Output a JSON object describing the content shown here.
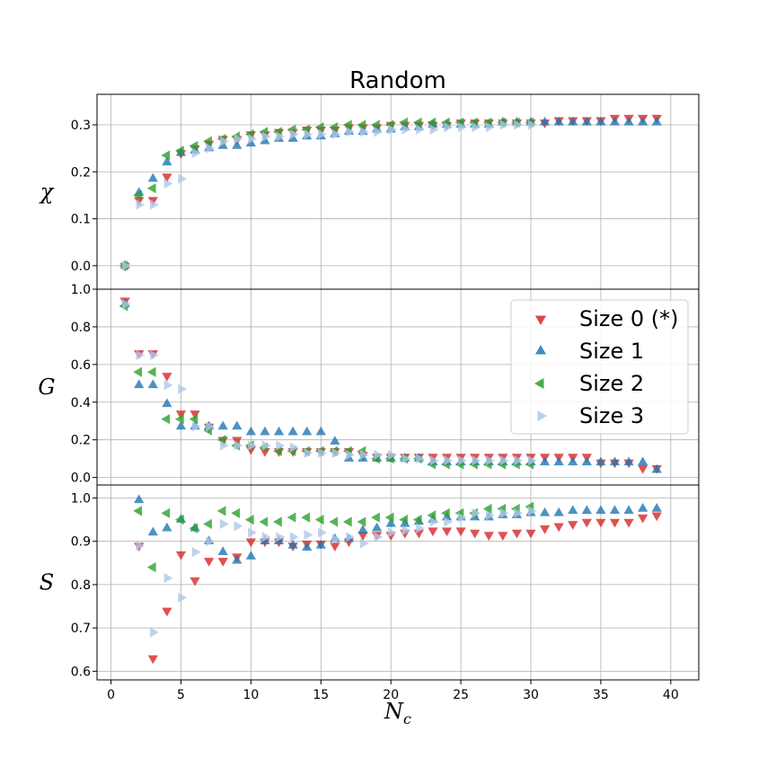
{
  "chart_data": {
    "type": "scatter",
    "title": "Random",
    "xlabel": "N_c",
    "xlabel_main": "N",
    "xlabel_sub": "c",
    "xlim": [
      -1,
      42
    ],
    "xticks": [
      0,
      5,
      10,
      15,
      20,
      25,
      30,
      35,
      40
    ],
    "legend": {
      "placement": "middle panel, upper right",
      "entries": [
        "Size 0 (*)",
        "Size 1",
        "Size 2",
        "Size 3"
      ]
    },
    "series_styles": [
      {
        "name": "Size 0 (*)",
        "marker": "triangle-down",
        "color": "#d62728"
      },
      {
        "name": "Size 1",
        "marker": "triangle-up",
        "color": "#1f77b4"
      },
      {
        "name": "Size 2",
        "marker": "triangle-left",
        "color": "#2ca02c"
      },
      {
        "name": "Size 3",
        "marker": "triangle-right",
        "color": "#aec7e8"
      }
    ],
    "panels": [
      {
        "ylabel": "χ",
        "ylim": [
          -0.05,
          0.365
        ],
        "yticks": [
          0.0,
          0.1,
          0.2,
          0.3
        ],
        "ytick_labels": [
          "0.0",
          "0.1",
          "0.2",
          "0.3"
        ],
        "series": [
          {
            "name": "Size 0 (*)",
            "x": [
              1,
              2,
              3,
              4,
              5,
              6,
              7,
              8,
              9,
              10,
              11,
              12,
              13,
              14,
              15,
              16,
              17,
              18,
              19,
              20,
              21,
              22,
              23,
              24,
              25,
              26,
              27,
              28,
              29,
              30,
              31,
              32,
              33,
              34,
              35,
              36,
              37,
              38,
              39
            ],
            "y": [
              0.0,
              0.14,
              0.14,
              0.19,
              0.24,
              0.25,
              0.26,
              0.27,
              0.27,
              0.28,
              0.28,
              0.285,
              0.285,
              0.29,
              0.29,
              0.29,
              0.295,
              0.295,
              0.295,
              0.3,
              0.3,
              0.3,
              0.3,
              0.3,
              0.305,
              0.305,
              0.305,
              0.305,
              0.305,
              0.305,
              0.305,
              0.31,
              0.31,
              0.31,
              0.31,
              0.315,
              0.315,
              0.315,
              0.315
            ]
          },
          {
            "name": "Size 1",
            "x": [
              1,
              2,
              3,
              4,
              5,
              6,
              7,
              8,
              9,
              10,
              11,
              12,
              13,
              14,
              15,
              16,
              17,
              18,
              19,
              20,
              21,
              22,
              23,
              24,
              25,
              26,
              27,
              28,
              29,
              30,
              31,
              32,
              33,
              34,
              35,
              36,
              37,
              38,
              39
            ],
            "y": [
              0.0,
              0.155,
              0.185,
              0.22,
              0.24,
              0.245,
              0.25,
              0.255,
              0.255,
              0.26,
              0.265,
              0.27,
              0.27,
              0.275,
              0.275,
              0.28,
              0.285,
              0.285,
              0.29,
              0.29,
              0.295,
              0.295,
              0.3,
              0.3,
              0.3,
              0.3,
              0.3,
              0.305,
              0.305,
              0.305,
              0.305,
              0.305,
              0.305,
              0.305,
              0.305,
              0.305,
              0.305,
              0.305,
              0.305
            ]
          },
          {
            "name": "Size 2",
            "x": [
              1,
              2,
              3,
              4,
              5,
              6,
              7,
              8,
              9,
              10,
              11,
              12,
              13,
              14,
              15,
              16,
              17,
              18,
              19,
              20,
              21,
              22,
              23,
              24,
              25,
              26,
              27,
              28,
              29,
              30
            ],
            "y": [
              0.0,
              0.15,
              0.165,
              0.235,
              0.245,
              0.255,
              0.265,
              0.27,
              0.275,
              0.28,
              0.285,
              0.285,
              0.29,
              0.29,
              0.295,
              0.295,
              0.3,
              0.3,
              0.3,
              0.3,
              0.305,
              0.305,
              0.305,
              0.305,
              0.305,
              0.305,
              0.305,
              0.305,
              0.305,
              0.305
            ]
          },
          {
            "name": "Size 3",
            "x": [
              1,
              2,
              3,
              4,
              5,
              6,
              7,
              8,
              9,
              10,
              11,
              12,
              13,
              14,
              15,
              16,
              17,
              18,
              19,
              20,
              21,
              22,
              23,
              24,
              25,
              26,
              27,
              28,
              29,
              30
            ],
            "y": [
              0.0,
              0.13,
              0.13,
              0.175,
              0.185,
              0.24,
              0.25,
              0.265,
              0.27,
              0.27,
              0.275,
              0.275,
              0.28,
              0.28,
              0.28,
              0.28,
              0.285,
              0.285,
              0.285,
              0.29,
              0.29,
              0.29,
              0.29,
              0.295,
              0.295,
              0.295,
              0.295,
              0.3,
              0.3,
              0.3
            ]
          }
        ]
      },
      {
        "ylabel": "G",
        "ylim": [
          -0.04,
          1.0
        ],
        "yticks": [
          0.0,
          0.2,
          0.4,
          0.6,
          0.8,
          1.0
        ],
        "ytick_labels": [
          "0.0",
          "0.2",
          "0.4",
          "0.6",
          "0.8",
          "1.0"
        ],
        "series": [
          {
            "name": "Size 0 (*)",
            "x": [
              1,
              2,
              3,
              4,
              5,
              6,
              7,
              8,
              9,
              10,
              11,
              12,
              13,
              14,
              15,
              16,
              17,
              18,
              19,
              20,
              21,
              22,
              23,
              24,
              25,
              26,
              27,
              28,
              29,
              30,
              31,
              32,
              33,
              34,
              35,
              36,
              37,
              38,
              39
            ],
            "y": [
              0.94,
              0.66,
              0.66,
              0.54,
              0.34,
              0.34,
              0.27,
              0.2,
              0.2,
              0.15,
              0.14,
              0.14,
              0.14,
              0.14,
              0.14,
              0.14,
              0.14,
              0.12,
              0.11,
              0.11,
              0.11,
              0.11,
              0.11,
              0.11,
              0.11,
              0.11,
              0.11,
              0.11,
              0.11,
              0.11,
              0.11,
              0.11,
              0.11,
              0.11,
              0.08,
              0.08,
              0.08,
              0.05,
              0.05
            ]
          },
          {
            "name": "Size 1",
            "x": [
              1,
              2,
              3,
              4,
              5,
              6,
              7,
              8,
              9,
              10,
              11,
              12,
              13,
              14,
              15,
              16,
              17,
              18,
              19,
              20,
              21,
              22,
              23,
              24,
              25,
              26,
              27,
              28,
              29,
              30,
              31,
              32,
              33,
              34,
              35,
              36,
              37,
              38,
              39
            ],
            "y": [
              0.92,
              0.49,
              0.49,
              0.39,
              0.27,
              0.27,
              0.27,
              0.27,
              0.27,
              0.24,
              0.24,
              0.24,
              0.24,
              0.24,
              0.24,
              0.19,
              0.1,
              0.1,
              0.1,
              0.1,
              0.1,
              0.1,
              0.08,
              0.08,
              0.08,
              0.08,
              0.08,
              0.08,
              0.08,
              0.08,
              0.08,
              0.08,
              0.08,
              0.08,
              0.08,
              0.08,
              0.08,
              0.08,
              0.04
            ]
          },
          {
            "name": "Size 2",
            "x": [
              1,
              2,
              3,
              4,
              5,
              6,
              7,
              8,
              9,
              10,
              11,
              12,
              13,
              14,
              15,
              16,
              17,
              18,
              19,
              20,
              21,
              22,
              23,
              24,
              25,
              26,
              27,
              28,
              29,
              30
            ],
            "y": [
              0.91,
              0.56,
              0.56,
              0.31,
              0.31,
              0.31,
              0.25,
              0.2,
              0.17,
              0.17,
              0.16,
              0.14,
              0.14,
              0.14,
              0.14,
              0.14,
              0.14,
              0.14,
              0.1,
              0.1,
              0.1,
              0.1,
              0.07,
              0.07,
              0.07,
              0.07,
              0.07,
              0.07,
              0.07,
              0.07
            ]
          },
          {
            "name": "Size 3",
            "x": [
              1,
              2,
              3,
              4,
              5,
              6,
              7,
              8,
              9,
              10,
              11,
              12,
              13,
              14,
              15,
              16,
              17,
              18,
              19,
              20,
              21,
              22,
              23,
              24,
              25,
              26,
              27,
              28,
              29,
              30
            ],
            "y": [
              0.92,
              0.65,
              0.65,
              0.49,
              0.47,
              0.27,
              0.27,
              0.17,
              0.17,
              0.17,
              0.17,
              0.17,
              0.16,
              0.13,
              0.13,
              0.13,
              0.12,
              0.12,
              0.12,
              0.12,
              0.1,
              0.1,
              0.09,
              0.09,
              0.09,
              0.09,
              0.09,
              0.09,
              0.09,
              0.09
            ]
          }
        ]
      },
      {
        "ylabel": "S",
        "ylim": [
          0.58,
          1.03
        ],
        "yticks": [
          0.6,
          0.7,
          0.8,
          0.9,
          1.0
        ],
        "ytick_labels": [
          "0.6",
          "0.7",
          "0.8",
          "0.9",
          "1.0"
        ],
        "series": [
          {
            "name": "Size 0 (*)",
            "x": [
              2,
              3,
              4,
              5,
              6,
              7,
              8,
              9,
              10,
              11,
              12,
              13,
              14,
              15,
              16,
              17,
              18,
              19,
              20,
              21,
              22,
              23,
              24,
              25,
              26,
              27,
              28,
              29,
              30,
              31,
              32,
              33,
              34,
              35,
              36,
              37,
              38,
              39
            ],
            "y": [
              0.89,
              0.63,
              0.74,
              0.87,
              0.81,
              0.855,
              0.855,
              0.865,
              0.9,
              0.9,
              0.9,
              0.89,
              0.895,
              0.895,
              0.89,
              0.9,
              0.915,
              0.915,
              0.915,
              0.92,
              0.92,
              0.925,
              0.925,
              0.925,
              0.92,
              0.915,
              0.915,
              0.92,
              0.92,
              0.93,
              0.935,
              0.94,
              0.945,
              0.945,
              0.945,
              0.945,
              0.955,
              0.96
            ]
          },
          {
            "name": "Size 1",
            "x": [
              2,
              3,
              4,
              5,
              6,
              7,
              8,
              9,
              10,
              11,
              12,
              13,
              14,
              15,
              16,
              17,
              18,
              19,
              20,
              21,
              22,
              23,
              24,
              25,
              26,
              27,
              28,
              29,
              30,
              31,
              32,
              33,
              34,
              35,
              36,
              37,
              38,
              39
            ],
            "y": [
              0.995,
              0.92,
              0.93,
              0.95,
              0.93,
              0.9,
              0.875,
              0.855,
              0.865,
              0.9,
              0.9,
              0.89,
              0.885,
              0.89,
              0.905,
              0.905,
              0.925,
              0.93,
              0.94,
              0.94,
              0.945,
              0.95,
              0.955,
              0.955,
              0.955,
              0.955,
              0.96,
              0.96,
              0.965,
              0.965,
              0.965,
              0.97,
              0.97,
              0.97,
              0.97,
              0.97,
              0.975,
              0.975
            ]
          },
          {
            "name": "Size 2",
            "x": [
              2,
              3,
              4,
              5,
              6,
              7,
              8,
              9,
              10,
              11,
              12,
              13,
              14,
              15,
              16,
              17,
              18,
              19,
              20,
              21,
              22,
              23,
              24,
              25,
              26,
              27,
              28,
              29,
              30
            ],
            "y": [
              0.97,
              0.84,
              0.965,
              0.95,
              0.93,
              0.94,
              0.97,
              0.965,
              0.95,
              0.945,
              0.945,
              0.955,
              0.955,
              0.95,
              0.945,
              0.945,
              0.945,
              0.955,
              0.955,
              0.95,
              0.95,
              0.96,
              0.965,
              0.965,
              0.965,
              0.975,
              0.975,
              0.975,
              0.98
            ]
          },
          {
            "name": "Size 3",
            "x": [
              2,
              3,
              4,
              5,
              6,
              7,
              8,
              9,
              10,
              11,
              12,
              13,
              14,
              15,
              16,
              17,
              18,
              19,
              20,
              21,
              22,
              23,
              24,
              25,
              26,
              27,
              28,
              29,
              30
            ],
            "y": [
              0.89,
              0.69,
              0.815,
              0.77,
              0.875,
              0.9,
              0.94,
              0.935,
              0.92,
              0.91,
              0.91,
              0.91,
              0.915,
              0.92,
              0.905,
              0.91,
              0.895,
              0.91,
              0.92,
              0.925,
              0.93,
              0.945,
              0.945,
              0.955,
              0.965,
              0.96,
              0.965,
              0.965,
              0.97
            ]
          }
        ]
      }
    ]
  }
}
